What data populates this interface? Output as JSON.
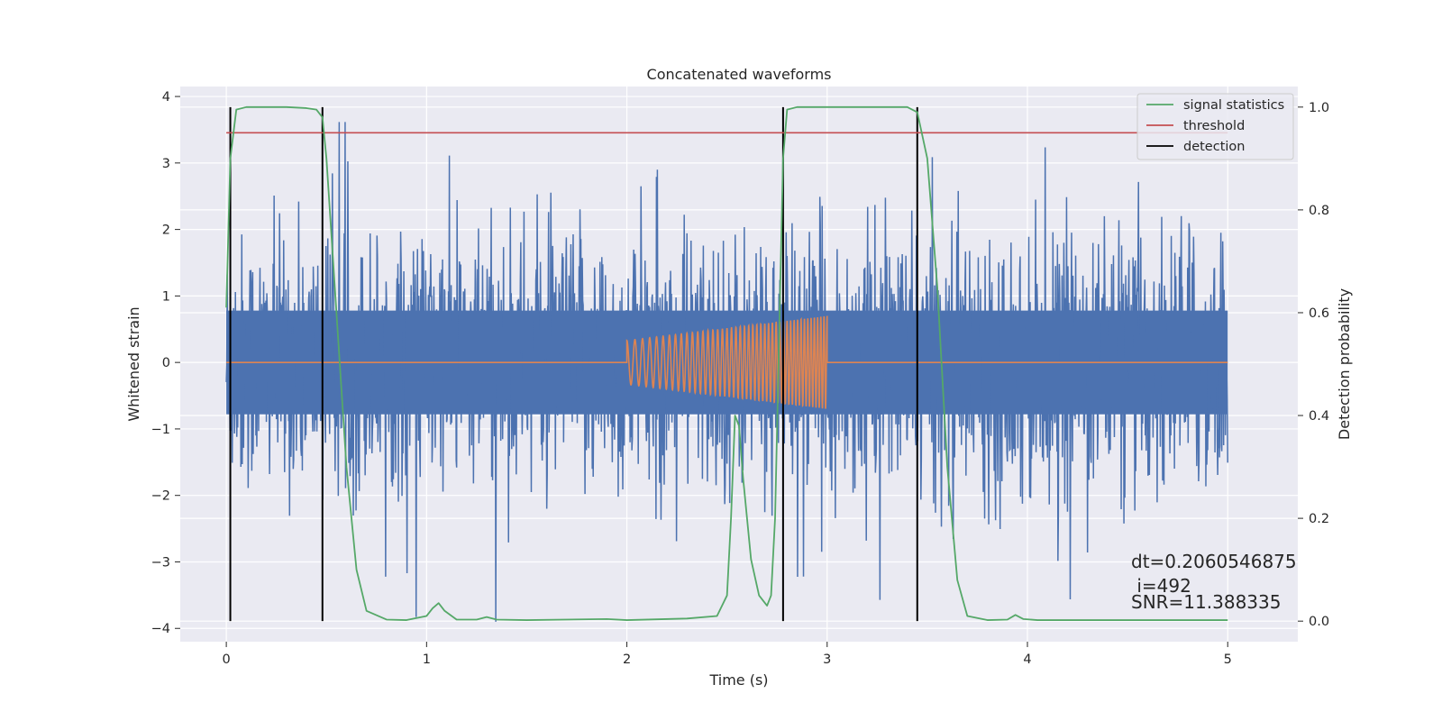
{
  "chart_data": {
    "type": "line",
    "title": "Concatenated waveforms",
    "xlabel": "Time (s)",
    "ylabel": "Whitened strain",
    "y2label": "Detection probability",
    "xlim": [
      -0.23,
      5.35
    ],
    "ylim": [
      -4.2,
      4.15
    ],
    "y2lim": [
      -0.04,
      1.04
    ],
    "xticks": [
      0,
      1,
      2,
      3,
      4,
      5
    ],
    "yticks": [
      -4,
      -3,
      -2,
      -1,
      0,
      1,
      2,
      3,
      4
    ],
    "y2ticks": [
      0.0,
      0.2,
      0.4,
      0.6,
      0.8,
      1.0
    ],
    "xtick_labels": [
      "0",
      "1",
      "2",
      "3",
      "4",
      "5"
    ],
    "ytick_labels": [
      "−4",
      "−3",
      "−2",
      "−1",
      "0",
      "1",
      "2",
      "3",
      "4"
    ],
    "y2tick_labels": [
      "0.0",
      "0.2",
      "0.4",
      "0.6",
      "0.8",
      "1.0"
    ],
    "grid": true,
    "legend_position": "top-right",
    "legend": [
      "signal statistics",
      "threshold",
      "detection"
    ],
    "colors": {
      "noise": "#4c72b0",
      "template": "#dd8452",
      "signal_statistics": "#55a868",
      "threshold": "#c44e52",
      "detection": "#000000",
      "background": "#eaeaf2",
      "grid": "#ffffff"
    },
    "series": [
      {
        "name": "signal statistics",
        "axis": "right",
        "x": [
          0.0,
          0.02,
          0.05,
          0.1,
          0.2,
          0.3,
          0.4,
          0.45,
          0.48,
          0.5,
          0.55,
          0.6,
          0.65,
          0.7,
          0.8,
          0.9,
          1.0,
          1.03,
          1.06,
          1.09,
          1.15,
          1.25,
          1.3,
          1.35,
          1.5,
          1.9,
          2.0,
          2.3,
          2.45,
          2.5,
          2.52,
          2.54,
          2.56,
          2.58,
          2.62,
          2.66,
          2.7,
          2.72,
          2.74,
          2.76,
          2.78,
          2.8,
          2.85,
          2.9,
          3.0,
          3.3,
          3.4,
          3.45,
          3.5,
          3.55,
          3.6,
          3.65,
          3.7,
          3.8,
          3.9,
          3.94,
          3.98,
          4.05,
          4.5,
          5.0
        ],
        "y": [
          0.61,
          0.9,
          0.995,
          1.0,
          1.0,
          1.0,
          0.998,
          0.995,
          0.98,
          0.9,
          0.6,
          0.3,
          0.1,
          0.02,
          0.003,
          0.002,
          0.01,
          0.025,
          0.035,
          0.02,
          0.003,
          0.003,
          0.008,
          0.003,
          0.002,
          0.004,
          0.002,
          0.005,
          0.01,
          0.05,
          0.2,
          0.4,
          0.38,
          0.28,
          0.12,
          0.05,
          0.03,
          0.05,
          0.2,
          0.55,
          0.9,
          0.995,
          1.0,
          1.0,
          1.0,
          1.0,
          1.0,
          0.99,
          0.9,
          0.65,
          0.3,
          0.08,
          0.01,
          0.002,
          0.003,
          0.012,
          0.004,
          0.002,
          0.002,
          0.002
        ]
      },
      {
        "name": "threshold",
        "axis": "right",
        "x": [
          0.0,
          5.0
        ],
        "y": [
          0.95,
          0.95
        ]
      }
    ],
    "detections": [
      0.02,
      0.48,
      2.78,
      3.45
    ],
    "chirp": {
      "start": 2.0,
      "end": 3.0,
      "amp_start": 0.33,
      "amp_end": 0.7
    },
    "noise": {
      "start": 0.0,
      "end": 5.0,
      "bulk_amplitude": 0.78
    },
    "annotations": [
      "dt=0.2060546875",
      " i=492",
      "SNR=11.388335"
    ]
  }
}
